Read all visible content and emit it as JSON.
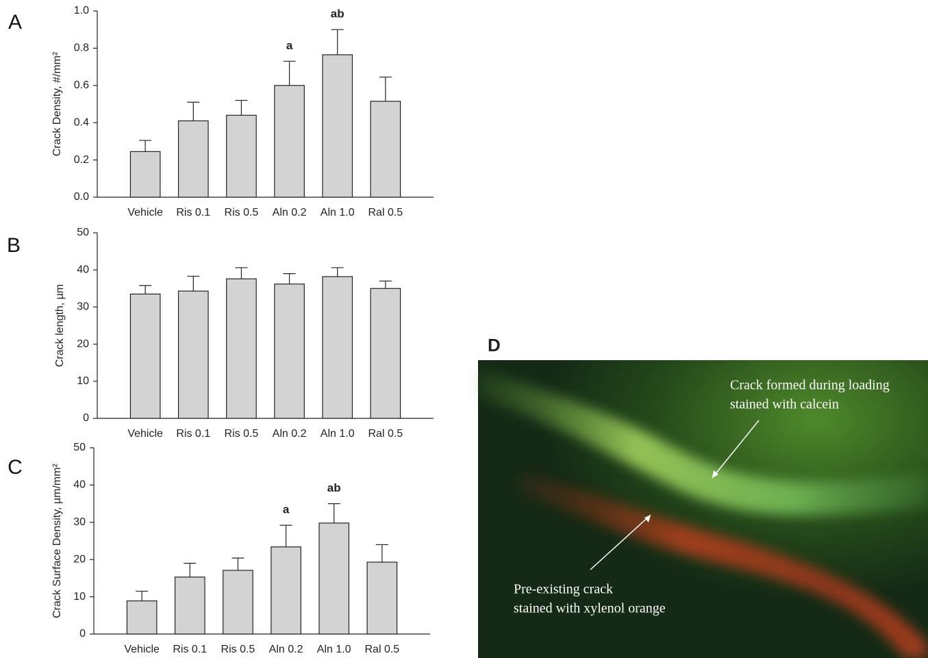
{
  "chart_data": [
    {
      "type": "bar",
      "panel_label": "A",
      "ylabel": "Crack Density, #/mm²",
      "categories": [
        "Vehicle",
        "Ris 0.1",
        "Ris 0.5",
        "Aln 0.2",
        "Aln 1.0",
        "Ral 0.5"
      ],
      "values": [
        0.245,
        0.41,
        0.44,
        0.6,
        0.765,
        0.515
      ],
      "errors": [
        0.06,
        0.1,
        0.08,
        0.13,
        0.135,
        0.13
      ],
      "annotations": [
        null,
        null,
        null,
        "a",
        "ab",
        null
      ],
      "color": "#d3d3d3",
      "ylim": [
        0,
        1
      ],
      "yticks": [
        {
          "value": 0,
          "label": "0.0"
        },
        0.2,
        0.4,
        0.6,
        0.8,
        {
          "value": 1,
          "label": "1.0"
        }
      ]
    },
    {
      "type": "bar",
      "panel_label": "B",
      "ylabel": "Crack length, µm",
      "categories": [
        "Vehicle",
        "Ris 0.1",
        "Ris 0.5",
        "Aln 0.2",
        "Aln 1.0",
        "Ral 0.5"
      ],
      "values": [
        33.5,
        34.3,
        37.6,
        36.2,
        38.2,
        35
      ],
      "errors": [
        2.3,
        4,
        3,
        2.8,
        2.4,
        2
      ],
      "color": "#d3d3d3",
      "ylim": [
        0,
        50
      ],
      "yticks": [
        0,
        10,
        20,
        30,
        40,
        50
      ]
    },
    {
      "type": "bar",
      "panel_label": "C",
      "ylabel": "Crack Surface Density, µm/mm²",
      "categories": [
        "Vehicle",
        "Ris 0.1",
        "Ris 0.5",
        "Aln 0.2",
        "Aln 1.0",
        "Ral 0.5"
      ],
      "values": [
        8.9,
        15.3,
        17.1,
        23.4,
        29.8,
        19.3
      ],
      "errors": [
        2.6,
        3.7,
        3.3,
        5.8,
        5.2,
        4.7
      ],
      "annotations": [
        null,
        null,
        null,
        "a",
        "ab",
        null
      ],
      "color": "#d3d3d3",
      "ylim": [
        0,
        50
      ],
      "yticks": [
        0,
        10,
        20,
        30,
        40,
        50
      ]
    }
  ],
  "image_panel": {
    "label": "D",
    "annotations": [
      "Crack formed during loading",
      "stained with calcein",
      "Pre-existing crack",
      "stained with xylenol orange"
    ]
  }
}
